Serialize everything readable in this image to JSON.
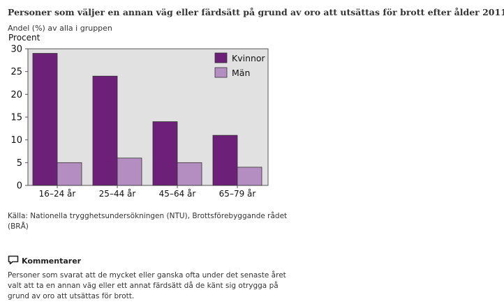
{
  "page": {
    "title": "Personer som väljer en annan väg eller färdsätt på grund av oro att utsättas för brott efter ålder 2011",
    "subtitle": "Andel (%) av alla i gruppen",
    "source": "Källa: Nationella trygghetsundersökningen (NTU), Brottsförebyggande rådet (BRÅ)",
    "comments": {
      "icon": "speech-bubble-icon",
      "heading": "Kommentarer",
      "text": "Personer som svarat att de mycket eller ganska ofta under det senaste året valt att ta en annan väg eller ett annat färdsätt då de känt sig otrygga på grund av oro att utsättas för brott."
    }
  },
  "chart_data": {
    "type": "bar",
    "ylabel": "Procent",
    "xlabel": "",
    "ylim": [
      0,
      30
    ],
    "yticks": [
      0,
      5,
      10,
      15,
      20,
      25,
      30
    ],
    "categories": [
      "16–24 år",
      "25–44 år",
      "45–64 år",
      "65–79 år"
    ],
    "series": [
      {
        "name": "Kvinnor",
        "values": [
          29,
          24,
          14,
          11
        ],
        "color": "#6d2077"
      },
      {
        "name": "Män",
        "values": [
          5,
          6,
          5,
          4
        ],
        "color": "#b48ec0"
      }
    ],
    "legend": "top-right",
    "grid": false,
    "background": "#e1e1e1"
  }
}
